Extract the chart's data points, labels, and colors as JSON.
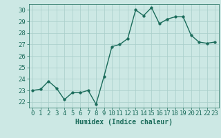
{
  "x": [
    0,
    1,
    2,
    3,
    4,
    5,
    6,
    7,
    8,
    9,
    10,
    11,
    12,
    13,
    14,
    15,
    16,
    17,
    18,
    19,
    20,
    21,
    22,
    23
  ],
  "y": [
    23.0,
    23.1,
    23.8,
    23.2,
    22.2,
    22.8,
    22.8,
    23.0,
    21.8,
    24.2,
    26.8,
    27.0,
    27.5,
    30.0,
    29.5,
    30.2,
    28.8,
    29.2,
    29.4,
    29.4,
    27.8,
    27.2,
    27.1,
    27.2
  ],
  "line_color": "#1a6b5a",
  "marker_color": "#1a6b5a",
  "bg_color": "#cce8e4",
  "grid_color": "#a8cec9",
  "xlabel": "Humidex (Indice chaleur)",
  "xlim": [
    -0.5,
    23.5
  ],
  "ylim": [
    21.5,
    30.5
  ],
  "yticks": [
    22,
    23,
    24,
    25,
    26,
    27,
    28,
    29,
    30
  ],
  "xticks": [
    0,
    1,
    2,
    3,
    4,
    5,
    6,
    7,
    8,
    9,
    10,
    11,
    12,
    13,
    14,
    15,
    16,
    17,
    18,
    19,
    20,
    21,
    22,
    23
  ],
  "xlabel_fontsize": 7,
  "tick_fontsize": 6.5,
  "line_width": 1.0,
  "marker_size": 2.5
}
